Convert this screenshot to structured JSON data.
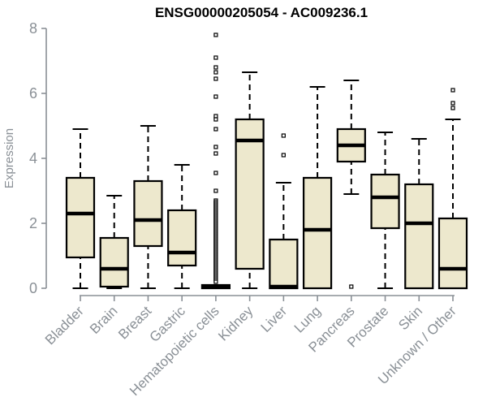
{
  "chart_data": {
    "type": "boxplot",
    "title": "ENSG00000205054 - AC009236.1",
    "xlabel": "",
    "ylabel": "Expression",
    "ylim": [
      0,
      8
    ],
    "yticks": [
      0,
      2,
      4,
      6,
      8
    ],
    "grid": false,
    "legend": "none",
    "categories": [
      "Bladder",
      "Brain",
      "Breast",
      "Gastric",
      "Hematopoietic cells",
      "Kidney",
      "Liver",
      "Lung",
      "Pancreas",
      "Prostate",
      "Skin",
      "Unknown / Other"
    ],
    "boxes": [
      {
        "category": "Bladder",
        "whisker_low": 0,
        "q1": 0.95,
        "median": 2.3,
        "q3": 3.4,
        "whisker_high": 4.9,
        "outliers": []
      },
      {
        "category": "Brain",
        "whisker_low": 0,
        "q1": 0.05,
        "median": 0.6,
        "q3": 1.55,
        "whisker_high": 2.85,
        "outliers": []
      },
      {
        "category": "Breast",
        "whisker_low": 0,
        "q1": 1.3,
        "median": 2.1,
        "q3": 3.3,
        "whisker_high": 5.0,
        "outliers": []
      },
      {
        "category": "Gastric",
        "whisker_low": 0,
        "q1": 0.7,
        "median": 1.1,
        "q3": 2.4,
        "whisker_high": 3.8,
        "outliers": []
      },
      {
        "category": "Hematopoietic cells",
        "whisker_low": 0,
        "q1": 0,
        "median": 0.05,
        "q3": 0.1,
        "whisker_high": 0.1,
        "outliers": [
          7.8,
          7.1,
          6.8,
          6.65,
          6.45,
          5.9,
          5.3,
          5.2,
          4.9,
          4.35,
          4.15,
          3.55,
          3.0,
          2.7,
          2.65,
          2.6,
          2.55,
          2.5,
          2.45,
          2.4,
          2.35,
          2.3,
          2.25,
          2.2,
          2.15,
          2.1,
          2.05,
          2.0,
          1.95,
          1.9,
          1.85,
          1.8,
          1.75,
          1.7,
          1.65,
          1.6,
          1.55,
          1.5,
          1.45,
          1.4,
          1.35,
          1.3,
          1.25,
          1.2,
          1.15,
          1.1,
          1.05,
          1.0,
          0.95,
          0.9,
          0.85,
          0.8,
          0.75,
          0.7,
          0.65,
          0.6,
          0.55,
          0.5,
          0.45,
          0.4,
          0.35,
          0.3,
          0.25,
          0.2
        ]
      },
      {
        "category": "Kidney",
        "whisker_low": 0,
        "q1": 0.6,
        "median": 4.55,
        "q3": 5.2,
        "whisker_high": 6.65,
        "outliers": []
      },
      {
        "category": "Liver",
        "whisker_low": 0,
        "q1": 0,
        "median": 0.05,
        "q3": 1.5,
        "whisker_high": 3.25,
        "outliers": [
          4.7,
          4.1
        ]
      },
      {
        "category": "Lung",
        "whisker_low": 0,
        "q1": 0,
        "median": 1.8,
        "q3": 3.4,
        "whisker_high": 6.2,
        "outliers": []
      },
      {
        "category": "Pancreas",
        "whisker_low": 2.9,
        "q1": 3.9,
        "median": 4.4,
        "q3": 4.9,
        "whisker_high": 6.4,
        "outliers": [
          0.05
        ]
      },
      {
        "category": "Prostate",
        "whisker_low": 0,
        "q1": 1.85,
        "median": 2.8,
        "q3": 3.5,
        "whisker_high": 4.8,
        "outliers": []
      },
      {
        "category": "Skin",
        "whisker_low": 0,
        "q1": 0,
        "median": 2.0,
        "q3": 3.2,
        "whisker_high": 4.6,
        "outliers": []
      },
      {
        "category": "Unknown / Other",
        "whisker_low": 0,
        "q1": 0,
        "median": 0.6,
        "q3": 2.15,
        "whisker_high": 5.2,
        "outliers": [
          6.1,
          5.7,
          5.55
        ]
      }
    ],
    "colors": {
      "box_fill": "#EDE8CD",
      "box_border": "#000000",
      "median": "#000000",
      "whisker": "#000000",
      "outlier_stroke": "#000000",
      "outlier_fill": "#ffffff",
      "axis": "#8a9096",
      "tick_label": "#8a9096",
      "title": "#000000",
      "background": "#ffffff"
    }
  }
}
